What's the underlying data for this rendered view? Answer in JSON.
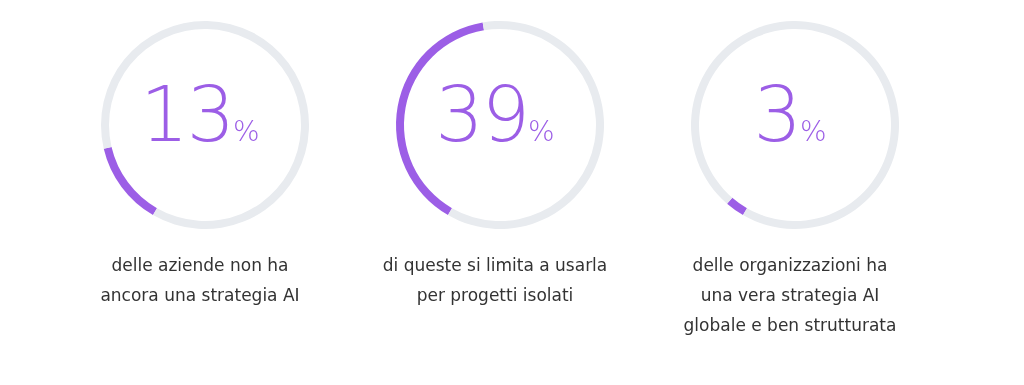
{
  "chart_data": [
    {
      "type": "donut",
      "categories": [
        null,
        null
      ],
      "values": [
        13,
        87
      ],
      "colors": [
        "#9c5ee6",
        "#e8ebef"
      ],
      "annotations": [
        "13%",
        "delle aziende non ha ancora una strategia AI"
      ]
    },
    {
      "type": "donut",
      "categories": [
        null,
        null
      ],
      "values": [
        39,
        61
      ],
      "colors": [
        "#9c5ee6",
        "#e8ebef"
      ],
      "annotations": [
        "39%",
        "di queste si limita a usarla per progetti isolati"
      ]
    },
    {
      "type": "donut",
      "categories": [
        null,
        null
      ],
      "values": [
        3,
        97
      ],
      "colors": [
        "#9c5ee6",
        "#e8ebef"
      ],
      "annotations": [
        "3%",
        "delle organizzazioni ha una vera strategia AI globale e ben strutturata"
      ]
    }
  ]
}
